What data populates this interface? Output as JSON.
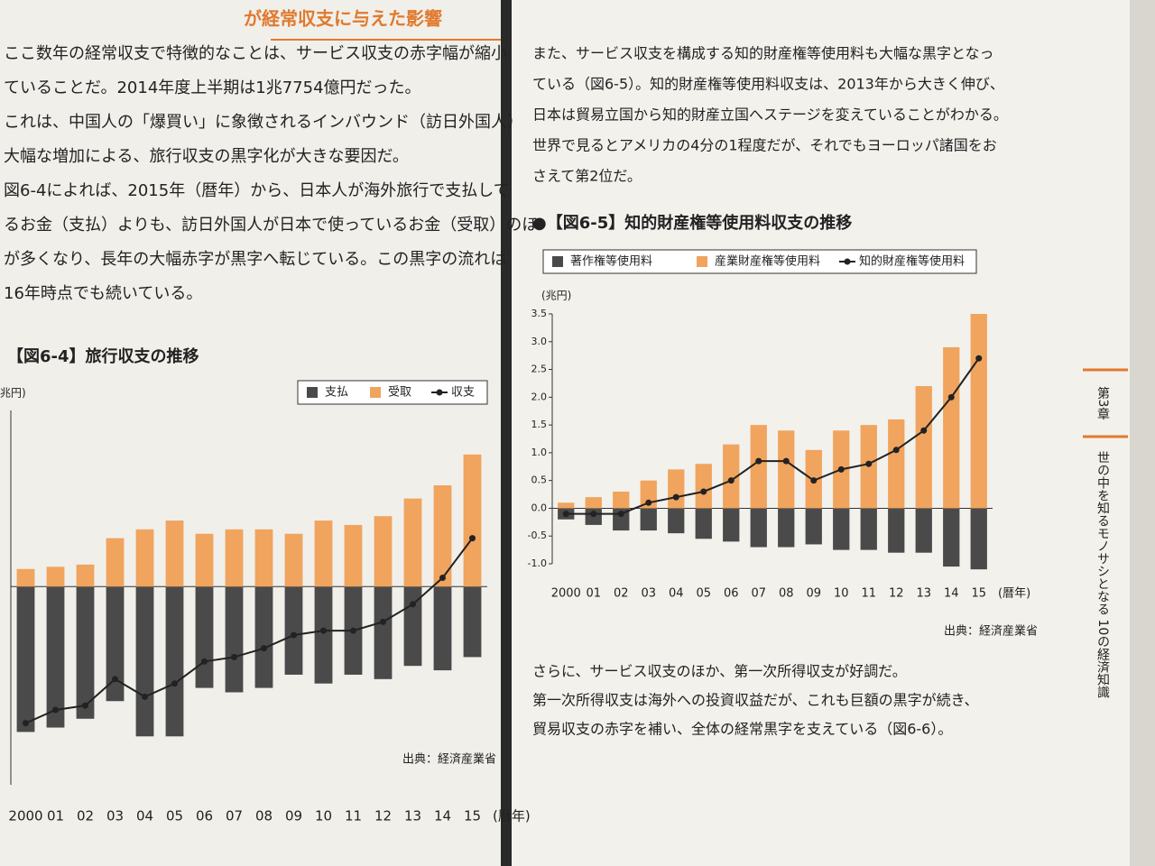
{
  "left_page": {
    "heading": "が経常収支に与えた影響",
    "lines": [
      "ここ数年の経常収支で特徴的なことは、サービス収支の赤字幅が縮小",
      "ていることだ。2014年度上半期は1兆7754億円だった。",
      "これは、中国人の「爆買い」に象徴されるインバウンド（訪日外国人）",
      "大幅な増加による、旅行収支の黒字化が大きな要因だ。",
      "図6-4によれば、2015年（暦年）から、日本人が海外旅行で支払して",
      "るお金（支払）よりも、訪日外国人が日本で使っているお金（受取）のほ",
      "が多くなり、長年の大幅赤字が黒字へ転じている。この黒字の流れは",
      "16年時点でも続いている。"
    ]
  },
  "right_page": {
    "lines_1": [
      "また、サービス収支を構成する知的財産権等使用料も大幅な黒字となっ",
      "ている（図6-5）。知的財産権等使用料収支は、2013年から大きく伸び、",
      "日本は貿易立国から知的財産立国へステージを変えていることがわかる。",
      "世界で見るとアメリカの4分の1程度だが、それでもヨーロッパ諸国をお",
      "さえて第2位だ。"
    ],
    "lines_2": [
      "さらに、サービス収支のほか、第一次所得収支が好調だ。",
      "第一次所得収支は海外への投資収益だが、これも巨額の黒字が続き、",
      "貿易収支の赤字を補い、全体の経常黒字を支えている（図6-6）。"
    ]
  },
  "side_tab": {
    "chapter": "第3章",
    "book_title": "世の中を知るモノサシとなる 10の経済知識"
  },
  "chart_data": [
    {
      "type": "bar_line",
      "title": "【図6-4】旅行収支の推移",
      "y_label": "兆円)",
      "x_label": "(暦年)",
      "source": "出典：経済産業省",
      "legend": "top-right",
      "categories": [
        "2000",
        "01",
        "02",
        "03",
        "04",
        "05",
        "06",
        "07",
        "08",
        "09",
        "10",
        "11",
        "12",
        "13",
        "14",
        "15"
      ],
      "ylim": [
        -4.5,
        4
      ],
      "series": [
        {
          "name": "支払",
          "mark": "bar",
          "color": "#4a4a4a",
          "values": [
            -3.3,
            -3.2,
            -3.0,
            -2.6,
            -3.4,
            -3.4,
            -2.3,
            -2.4,
            -2.3,
            -2.0,
            -2.2,
            -2.0,
            -2.1,
            -1.8,
            -1.9,
            -1.6
          ]
        },
        {
          "name": "受取",
          "mark": "bar",
          "color": "#f0a45e",
          "values": [
            0.4,
            0.45,
            0.5,
            1.1,
            1.3,
            1.5,
            1.2,
            1.3,
            1.3,
            1.2,
            1.5,
            1.4,
            1.6,
            2.0,
            2.3,
            3.0
          ]
        },
        {
          "name": "収支",
          "mark": "line",
          "color": "#222222",
          "values": [
            -3.1,
            -2.8,
            -2.7,
            -2.1,
            -2.5,
            -2.2,
            -1.7,
            -1.6,
            -1.4,
            -1.1,
            -1.0,
            -1.0,
            -0.8,
            -0.4,
            0.2,
            1.1
          ]
        }
      ]
    },
    {
      "type": "bar_line",
      "title": "●【図6-5】知的財産権等使用料収支の推移",
      "y_label": "(兆円)",
      "x_label": "(暦年)",
      "source": "出典：経済産業省",
      "legend": "top",
      "categories": [
        "2000",
        "01",
        "02",
        "03",
        "04",
        "05",
        "06",
        "07",
        "08",
        "09",
        "10",
        "11",
        "12",
        "13",
        "14",
        "15"
      ],
      "ylim": [
        -1.0,
        3.5
      ],
      "yticks": [
        {
          "value": -1.0,
          "label": "-1.0"
        },
        -0.5,
        {
          "value": 0.0,
          "label": "0.0"
        },
        0.5,
        {
          "value": 1.0,
          "label": "1.0"
        },
        1.5,
        {
          "value": 2.0,
          "label": "2.0"
        },
        2.5,
        {
          "value": 3.0,
          "label": "3.0"
        },
        3.5
      ],
      "series": [
        {
          "name": "著作権等使用料",
          "mark": "bar",
          "color": "#4a4a4a",
          "values": [
            -0.2,
            -0.3,
            -0.4,
            -0.4,
            -0.45,
            -0.55,
            -0.6,
            -0.7,
            -0.7,
            -0.65,
            -0.75,
            -0.75,
            -0.8,
            -0.8,
            -1.05,
            -1.1
          ]
        },
        {
          "name": "産業財産権等使用料",
          "mark": "bar",
          "color": "#f0a45e",
          "values": [
            0.1,
            0.2,
            0.3,
            0.5,
            0.7,
            0.8,
            1.15,
            1.5,
            1.4,
            1.05,
            1.4,
            1.5,
            1.6,
            2.2,
            2.9,
            3.5
          ]
        },
        {
          "name": "知的財産権等使用料",
          "mark": "line",
          "color": "#222222",
          "values": [
            -0.1,
            -0.1,
            -0.1,
            0.1,
            0.2,
            0.3,
            0.5,
            0.85,
            0.85,
            0.5,
            0.7,
            0.8,
            1.05,
            1.4,
            2.0,
            2.7
          ]
        }
      ]
    }
  ]
}
